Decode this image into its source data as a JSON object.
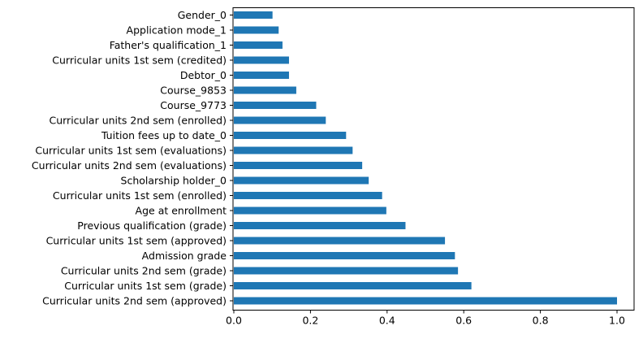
{
  "chart_data": {
    "type": "bar",
    "orientation": "horizontal",
    "title": "",
    "xlabel": "",
    "ylabel": "",
    "xlim": [
      0,
      1.05
    ],
    "xticks": [
      0.0,
      0.2,
      0.4,
      0.6,
      0.8,
      1.0
    ],
    "xtick_labels": [
      "0.0",
      "0.2",
      "0.4",
      "0.6",
      "0.8",
      "1.0"
    ],
    "grid": false,
    "bar_color": "#1f77b4",
    "categories": [
      "Curricular units 2nd sem (approved)",
      "Curricular units 1st sem (grade)",
      "Curricular units 2nd sem (grade)",
      "Admission grade",
      "Curricular units 1st sem (approved)",
      "Previous qualification (grade)",
      "Age at enrollment",
      "Curricular units 1st sem (enrolled)",
      "Scholarship holder_0",
      "Curricular units 2nd sem (evaluations)",
      "Curricular units 1st sem (evaluations)",
      "Tuition fees up to date_0",
      "Curricular units 2nd sem (enrolled)",
      "Course_9773",
      "Course_9853",
      "Debtor_0",
      "Curricular units 1st sem (credited)",
      "Father's qualification_1",
      "Application mode_1",
      "Gender_0"
    ],
    "values": [
      1.0,
      0.62,
      0.585,
      0.577,
      0.551,
      0.448,
      0.398,
      0.387,
      0.352,
      0.335,
      0.31,
      0.293,
      0.24,
      0.215,
      0.163,
      0.144,
      0.144,
      0.127,
      0.117,
      0.101
    ]
  }
}
